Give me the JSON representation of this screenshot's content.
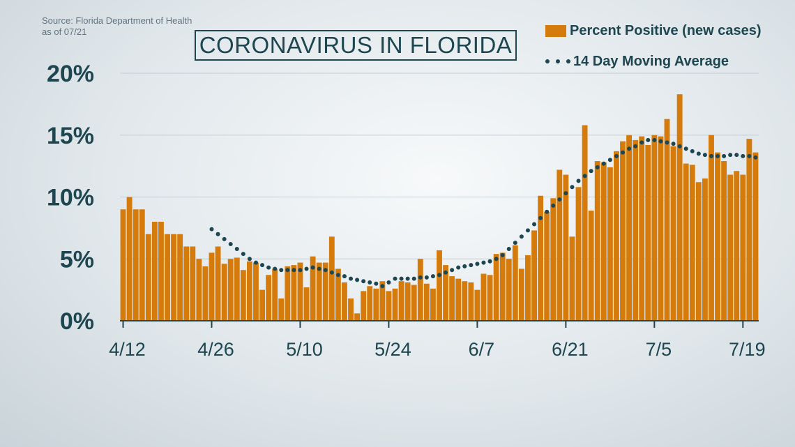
{
  "source": {
    "line1": "Source: Florida Department of Health",
    "line2": "as of 07/21"
  },
  "chart_data": {
    "type": "bar",
    "title": "CORONAVIRUS IN FLORIDA",
    "xlabel": "",
    "ylabel": "",
    "ylim": [
      0,
      20
    ],
    "y_ticks": [
      "0%",
      "5%",
      "10%",
      "15%",
      "20%"
    ],
    "x_ticks": [
      "4/12",
      "4/26",
      "5/10",
      "5/24",
      "6/7",
      "6/21",
      "7/5",
      "7/19"
    ],
    "grid": true,
    "legend_position": "top-right",
    "start_date": "4/12",
    "series": [
      {
        "name": "Percent Positive (new cases)",
        "type": "bar",
        "color": "#d57b0b",
        "values": [
          9.0,
          10.0,
          9.0,
          9.0,
          7.0,
          8.0,
          8.0,
          7.0,
          7.0,
          7.0,
          6.0,
          6.0,
          5.0,
          4.4,
          5.5,
          6.0,
          4.6,
          5.0,
          5.1,
          4.1,
          4.8,
          4.7,
          2.5,
          3.7,
          4.2,
          1.8,
          4.4,
          4.5,
          4.7,
          2.7,
          5.2,
          4.7,
          4.7,
          6.8,
          4.2,
          3.1,
          1.8,
          0.6,
          2.4,
          2.8,
          2.6,
          3.2,
          2.4,
          2.6,
          3.2,
          3.1,
          2.9,
          5.0,
          3.0,
          2.6,
          5.7,
          4.5,
          3.6,
          3.4,
          3.2,
          3.1,
          2.5,
          3.8,
          3.7,
          5.4,
          5.5,
          5.0,
          6.1,
          4.2,
          5.3,
          7.3,
          10.1,
          8.8,
          9.9,
          12.2,
          11.8,
          6.8,
          10.8,
          15.8,
          8.9,
          12.9,
          12.8,
          12.4,
          13.7,
          14.5,
          15.0,
          14.6,
          14.9,
          14.2,
          15.0,
          14.9,
          16.3,
          14.1,
          18.3,
          12.7,
          12.6,
          11.2,
          11.5,
          15.0,
          13.6,
          12.9,
          11.8,
          12.1,
          11.8,
          14.7,
          13.6
        ]
      },
      {
        "name": "14 Day Moving Average",
        "type": "dotted-line",
        "color": "#1d4650",
        "start_index": 14,
        "values": [
          7.4,
          7.0,
          6.6,
          6.2,
          5.8,
          5.4,
          5.0,
          4.7,
          4.5,
          4.3,
          4.2,
          4.1,
          4.1,
          4.1,
          4.1,
          4.2,
          4.3,
          4.2,
          4.1,
          3.9,
          3.7,
          3.6,
          3.4,
          3.3,
          3.2,
          3.1,
          3.0,
          2.8,
          3.1,
          3.4,
          3.4,
          3.4,
          3.4,
          3.5,
          3.5,
          3.6,
          3.7,
          3.9,
          4.1,
          4.3,
          4.4,
          4.5,
          4.6,
          4.7,
          4.8,
          5.0,
          5.3,
          5.8,
          6.3,
          6.8,
          7.3,
          7.8,
          8.3,
          8.8,
          9.3,
          9.8,
          10.3,
          10.8,
          11.3,
          11.7,
          12.1,
          12.4,
          12.7,
          13.0,
          13.3,
          13.6,
          13.9,
          14.1,
          14.4,
          14.6,
          14.6,
          14.5,
          14.4,
          14.3,
          14.1,
          13.9,
          13.7,
          13.5,
          13.4,
          13.3,
          13.3,
          13.3,
          13.4,
          13.4,
          13.3,
          13.3,
          13.2
        ]
      }
    ]
  }
}
